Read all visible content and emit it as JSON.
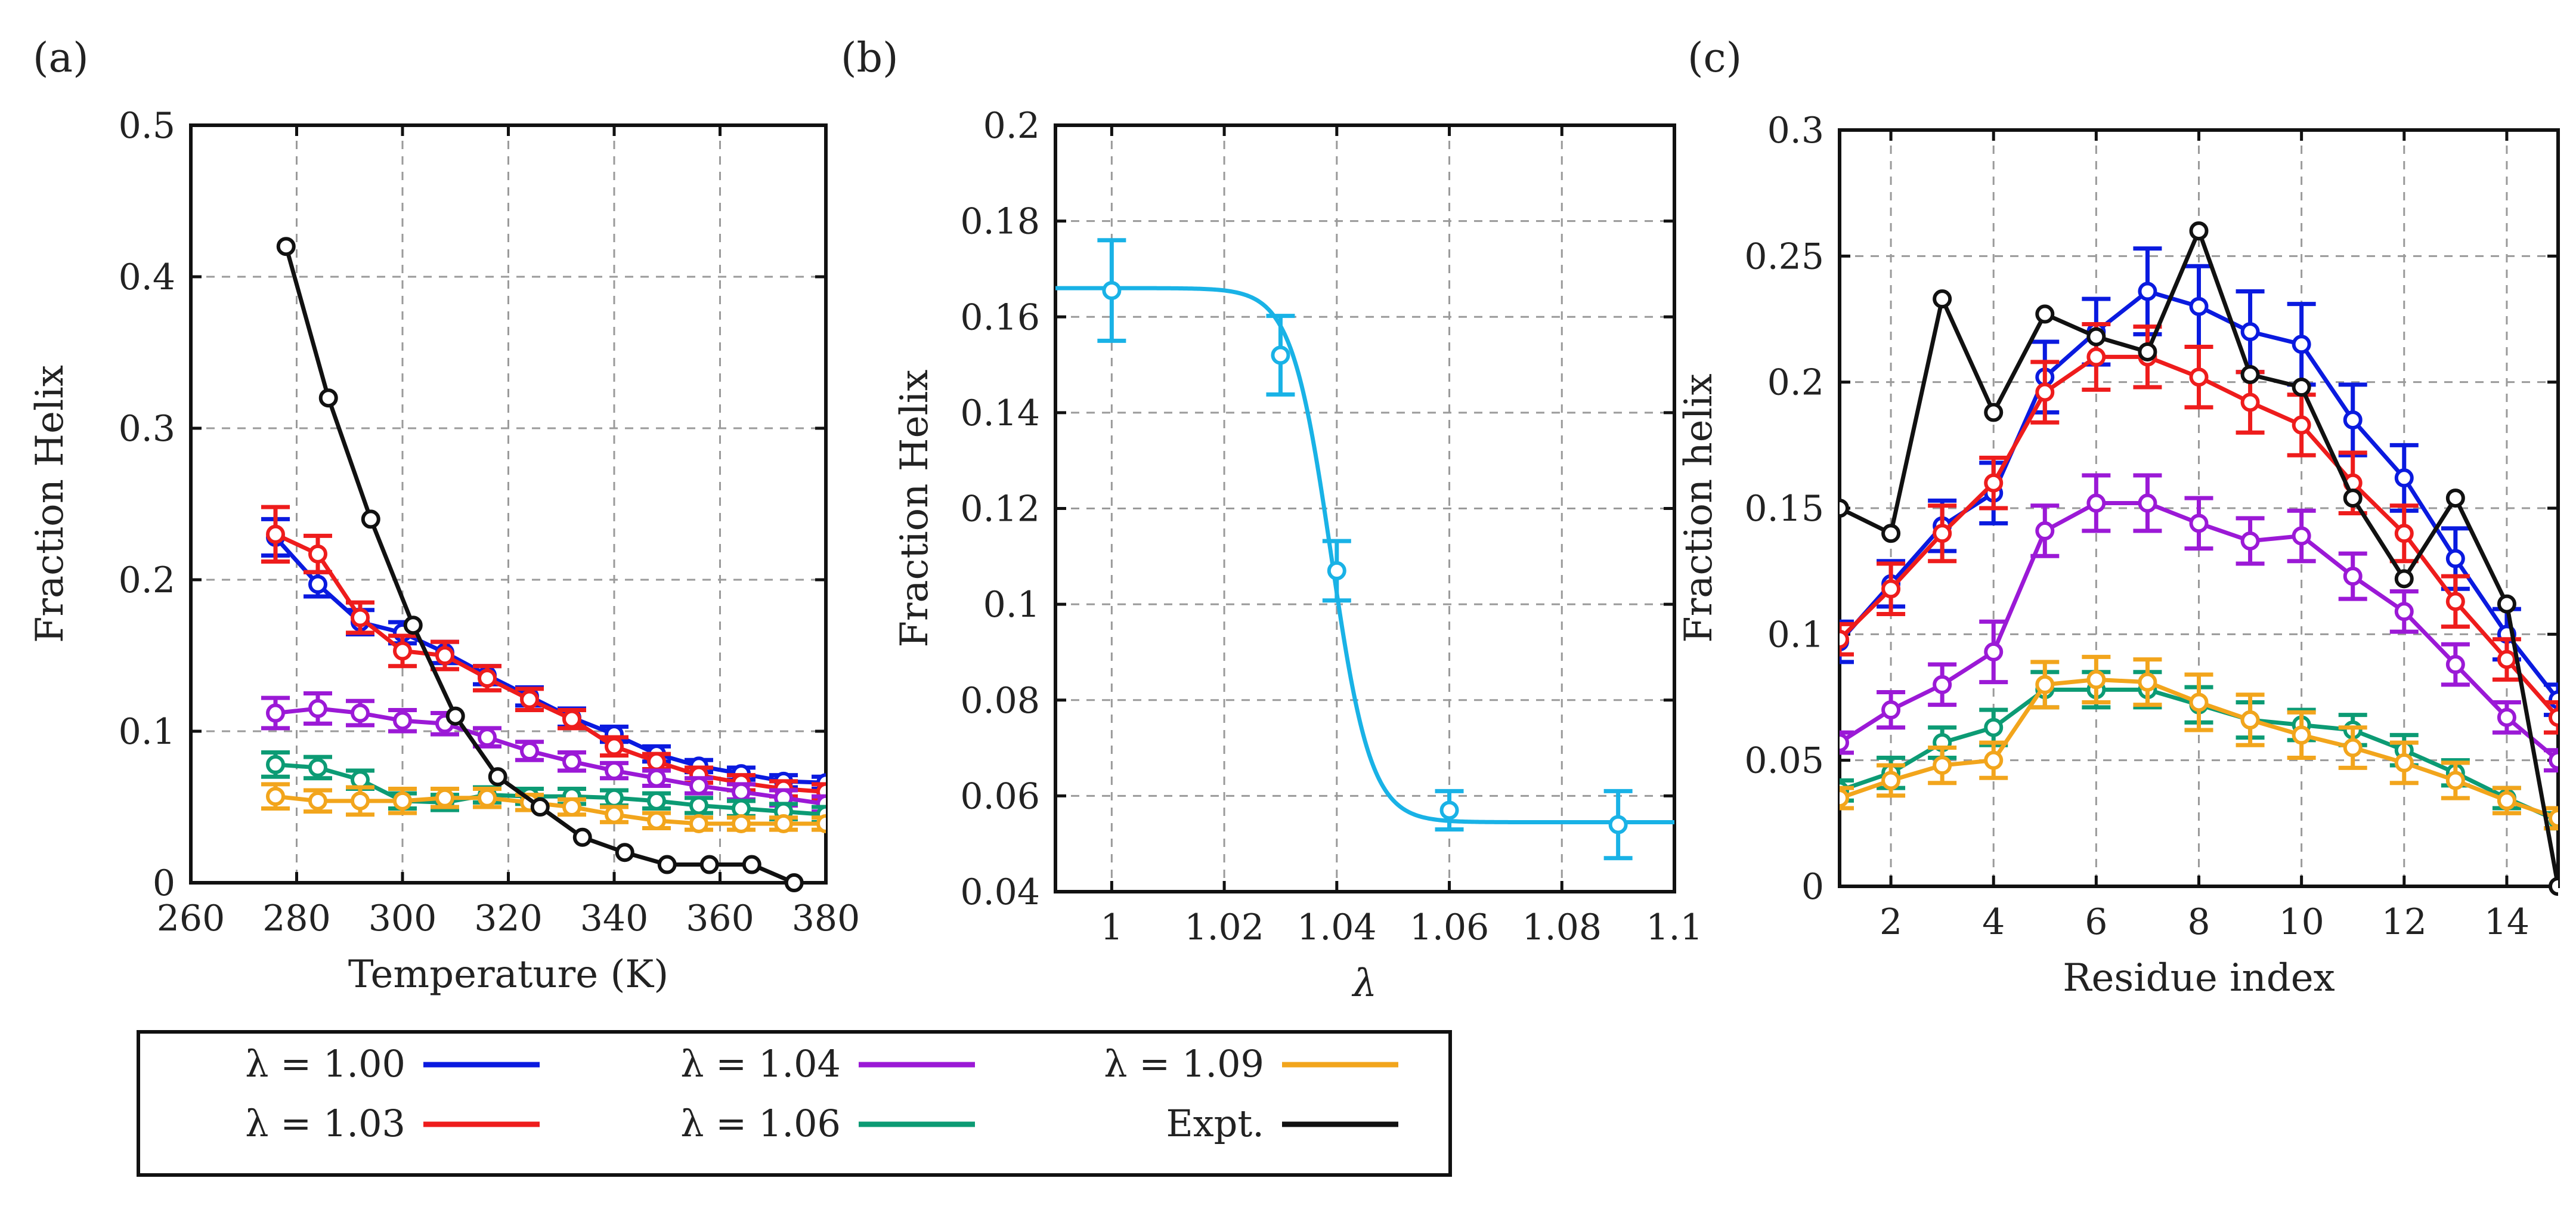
{
  "figure": {
    "legend": {
      "entries": [
        {
          "key": "l100",
          "label": "λ = 1.00",
          "color": "#0a1adf"
        },
        {
          "key": "l104",
          "label": "λ = 1.04",
          "color": "#9b19d6"
        },
        {
          "key": "l109",
          "label": "λ = 1.09",
          "color": "#f2a51c"
        },
        {
          "key": "l103",
          "label": "λ = 1.03",
          "color": "#ee1c1c"
        },
        {
          "key": "l106",
          "label": "λ = 1.06",
          "color": "#0c9b74"
        },
        {
          "key": "expt",
          "label": "Expt.",
          "color": "#111111"
        }
      ]
    }
  },
  "chart_data": [
    {
      "panel": "(a)",
      "type": "line",
      "xlabel": "Temperature (K)",
      "ylabel": "Fraction Helix",
      "xlim": [
        260,
        380
      ],
      "ylim": [
        0,
        0.5
      ],
      "xticks": [
        260,
        280,
        300,
        320,
        340,
        360,
        380
      ],
      "yticks": [
        0,
        0.1,
        0.2,
        0.3,
        0.4,
        0.5
      ],
      "ytick_labels": [
        "0",
        "0.1",
        "0.2",
        "0.3",
        "0.4",
        "0.5"
      ],
      "grid": true,
      "x": [
        276,
        284,
        292,
        300,
        308,
        316,
        324,
        332,
        340,
        348,
        356,
        364,
        372,
        380
      ],
      "series": [
        {
          "key": "l100",
          "name": "λ = 1.00",
          "color": "#0a1adf",
          "values": [
            0.228,
            0.197,
            0.172,
            0.165,
            0.152,
            0.137,
            0.123,
            0.109,
            0.098,
            0.085,
            0.077,
            0.072,
            0.067,
            0.066
          ],
          "err": [
            0.012,
            0.008,
            0.008,
            0.007,
            0.007,
            0.006,
            0.006,
            0.006,
            0.005,
            0.005,
            0.004,
            0.004,
            0.004,
            0.004
          ]
        },
        {
          "key": "l103",
          "name": "λ = 1.03",
          "color": "#ee1c1c",
          "values": [
            0.23,
            0.217,
            0.175,
            0.153,
            0.15,
            0.135,
            0.121,
            0.108,
            0.09,
            0.08,
            0.071,
            0.066,
            0.062,
            0.06
          ],
          "err": [
            0.018,
            0.012,
            0.01,
            0.01,
            0.009,
            0.008,
            0.007,
            0.006,
            0.006,
            0.005,
            0.005,
            0.005,
            0.005,
            0.005
          ]
        },
        {
          "key": "l104",
          "name": "λ = 1.04",
          "color": "#9b19d6",
          "values": [
            0.112,
            0.115,
            0.112,
            0.107,
            0.105,
            0.096,
            0.087,
            0.08,
            0.074,
            0.069,
            0.064,
            0.06,
            0.056,
            0.052
          ],
          "err": [
            0.01,
            0.01,
            0.008,
            0.007,
            0.007,
            0.006,
            0.006,
            0.006,
            0.005,
            0.005,
            0.005,
            0.005,
            0.005,
            0.005
          ]
        },
        {
          "key": "l106",
          "name": "λ = 1.06",
          "color": "#0c9b74",
          "values": [
            0.078,
            0.076,
            0.068,
            0.054,
            0.053,
            0.058,
            0.057,
            0.057,
            0.056,
            0.054,
            0.051,
            0.049,
            0.047,
            0.045
          ],
          "err": [
            0.008,
            0.007,
            0.006,
            0.005,
            0.005,
            0.005,
            0.005,
            0.005,
            0.005,
            0.005,
            0.005,
            0.005,
            0.005,
            0.005
          ]
        },
        {
          "key": "l109",
          "name": "λ = 1.09",
          "color": "#f2a51c",
          "values": [
            0.057,
            0.054,
            0.054,
            0.054,
            0.056,
            0.056,
            0.053,
            0.05,
            0.045,
            0.041,
            0.039,
            0.039,
            0.039,
            0.039
          ],
          "err": [
            0.008,
            0.007,
            0.009,
            0.008,
            0.006,
            0.006,
            0.005,
            0.005,
            0.005,
            0.005,
            0.004,
            0.004,
            0.004,
            0.004
          ]
        },
        {
          "key": "expt",
          "name": "Expt.",
          "color": "#111111",
          "x": [
            278,
            286,
            294,
            302,
            310,
            318,
            326,
            334,
            342,
            350,
            358,
            366,
            374
          ],
          "values": [
            0.42,
            0.32,
            0.24,
            0.17,
            0.11,
            0.07,
            0.05,
            0.03,
            0.02,
            0.012,
            0.012,
            0.012,
            0.0
          ]
        }
      ]
    },
    {
      "panel": "(b)",
      "type": "scatter",
      "xlabel": "λ",
      "ylabel": "Fraction Helix",
      "xlim": [
        0.99,
        1.1
      ],
      "ylim": [
        0.04,
        0.2
      ],
      "xticks": [
        1,
        1.02,
        1.04,
        1.06,
        1.08,
        1.1
      ],
      "xtick_labels": [
        "1",
        "1.02",
        "1.04",
        "1.06",
        "1.08",
        "1.1"
      ],
      "yticks": [
        0.04,
        0.06,
        0.08,
        0.1,
        0.12,
        0.14,
        0.16,
        0.18,
        0.2
      ],
      "ytick_labels": [
        "0.04",
        "0.06",
        "0.08",
        "0.1",
        "0.12",
        "0.14",
        "0.16",
        "0.18",
        "0.2"
      ],
      "grid": true,
      "color": "#19b2e6",
      "points": {
        "x": [
          1.0,
          1.03,
          1.04,
          1.06,
          1.09
        ],
        "y": [
          0.1655,
          0.152,
          0.107,
          0.057,
          0.054
        ],
        "err": [
          0.0105,
          0.0082,
          0.0062,
          0.004,
          0.007
        ]
      },
      "fit": {
        "kind": "sigmoid",
        "upper": 0.166,
        "lower": 0.0545,
        "midpoint": 1.039,
        "width": 0.0035
      }
    },
    {
      "panel": "(c)",
      "type": "line",
      "xlabel": "Residue index",
      "ylabel": "Fraction helix",
      "xlim": [
        1,
        15
      ],
      "ylim": [
        0,
        0.3
      ],
      "xticks": [
        2,
        4,
        6,
        8,
        10,
        12,
        14
      ],
      "yticks": [
        0,
        0.05,
        0.1,
        0.15,
        0.2,
        0.25,
        0.3
      ],
      "ytick_labels": [
        "0",
        "0.05",
        "0.1",
        "0.15",
        "0.2",
        "0.25",
        "0.3"
      ],
      "grid": true,
      "x": [
        1,
        2,
        3,
        4,
        5,
        6,
        7,
        8,
        9,
        10,
        11,
        12,
        13,
        14,
        15
      ],
      "series": [
        {
          "key": "l100",
          "name": "λ = 1.00",
          "color": "#0a1adf",
          "values": [
            0.097,
            0.12,
            0.143,
            0.156,
            0.202,
            0.22,
            0.236,
            0.23,
            0.22,
            0.215,
            0.185,
            0.162,
            0.13,
            0.1,
            0.074
          ],
          "err": [
            0.008,
            0.009,
            0.01,
            0.012,
            0.014,
            0.013,
            0.017,
            0.016,
            0.016,
            0.016,
            0.014,
            0.013,
            0.012,
            0.01,
            0.006
          ]
        },
        {
          "key": "l103",
          "name": "λ = 1.03",
          "color": "#ee1c1c",
          "values": [
            0.098,
            0.118,
            0.14,
            0.16,
            0.196,
            0.21,
            0.21,
            0.202,
            0.192,
            0.183,
            0.16,
            0.14,
            0.113,
            0.09,
            0.067
          ],
          "err": [
            0.006,
            0.01,
            0.011,
            0.01,
            0.012,
            0.013,
            0.012,
            0.012,
            0.012,
            0.012,
            0.012,
            0.011,
            0.01,
            0.008,
            0.006
          ]
        },
        {
          "key": "l104",
          "name": "λ = 1.04",
          "color": "#9b19d6",
          "values": [
            0.057,
            0.07,
            0.08,
            0.093,
            0.141,
            0.152,
            0.152,
            0.144,
            0.137,
            0.139,
            0.123,
            0.109,
            0.088,
            0.067,
            0.05
          ],
          "err": [
            0.004,
            0.007,
            0.008,
            0.012,
            0.01,
            0.011,
            0.011,
            0.01,
            0.009,
            0.01,
            0.009,
            0.008,
            0.008,
            0.006,
            0.004
          ]
        },
        {
          "key": "l106",
          "name": "λ = 1.06",
          "color": "#0c9b74",
          "values": [
            0.038,
            0.045,
            0.057,
            0.063,
            0.078,
            0.078,
            0.078,
            0.072,
            0.066,
            0.064,
            0.062,
            0.054,
            0.045,
            0.035,
            0.026
          ],
          "err": [
            0.004,
            0.006,
            0.006,
            0.007,
            0.007,
            0.007,
            0.007,
            0.007,
            0.007,
            0.006,
            0.006,
            0.006,
            0.005,
            0.004,
            0.003
          ]
        },
        {
          "key": "l109",
          "name": "λ = 1.09",
          "color": "#f2a51c",
          "values": [
            0.035,
            0.042,
            0.048,
            0.05,
            0.08,
            0.082,
            0.081,
            0.073,
            0.066,
            0.06,
            0.055,
            0.049,
            0.042,
            0.034,
            0.027
          ],
          "err": [
            0.004,
            0.006,
            0.007,
            0.007,
            0.009,
            0.009,
            0.009,
            0.011,
            0.01,
            0.009,
            0.008,
            0.008,
            0.007,
            0.005,
            0.004
          ]
        },
        {
          "key": "expt",
          "name": "Expt.",
          "color": "#111111",
          "values": [
            0.15,
            0.14,
            0.233,
            0.188,
            0.227,
            0.218,
            0.212,
            0.26,
            0.203,
            0.198,
            0.154,
            0.122,
            0.154,
            0.112,
            0.0
          ]
        }
      ]
    }
  ]
}
